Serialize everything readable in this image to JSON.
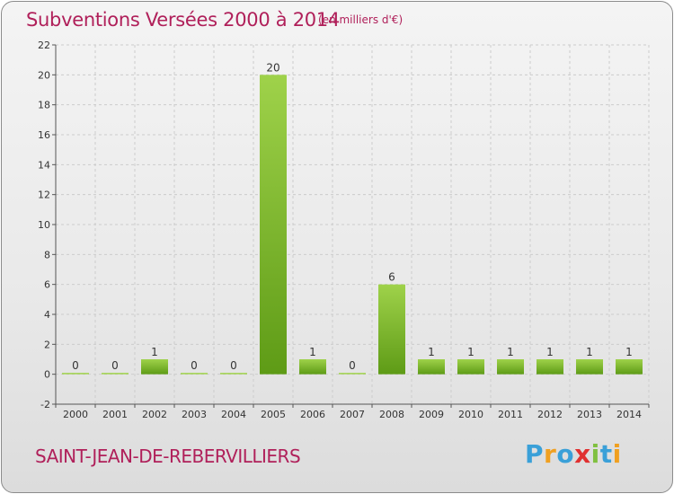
{
  "header": {
    "title": "Subventions Versées 2000 à 2014",
    "unit_note": "(en milliers d'€)"
  },
  "footer": {
    "commune": "SAINT-JEAN-DE-REBERVILLIERS",
    "brand": [
      "P",
      "r",
      "o",
      "x",
      "i",
      "t",
      "i"
    ]
  },
  "colors": {
    "title": "#b0205a",
    "bar_light": "#9fd24a",
    "bar_dark": "#5e9b16",
    "grid": "#cccccc",
    "brand": [
      "#3aa0d8",
      "#f0a020",
      "#3aa0d8",
      "#e03030",
      "#80c040",
      "#3aa0d8",
      "#f0a020"
    ]
  },
  "chart_data": {
    "type": "bar",
    "categories": [
      "2000",
      "2001",
      "2002",
      "2003",
      "2004",
      "2005",
      "2006",
      "2007",
      "2008",
      "2009",
      "2010",
      "2011",
      "2012",
      "2013",
      "2014"
    ],
    "values": [
      0,
      0,
      1,
      0,
      0,
      20,
      1,
      0,
      6,
      1,
      1,
      1,
      1,
      1,
      1
    ],
    "title": "Subventions Versées 2000 à 2014",
    "xlabel": "",
    "ylabel": "",
    "ylim": [
      -2,
      22
    ],
    "yticks": [
      -2,
      0,
      2,
      4,
      6,
      8,
      10,
      12,
      14,
      16,
      18,
      20,
      22
    ],
    "grid": true,
    "legend": "none"
  }
}
